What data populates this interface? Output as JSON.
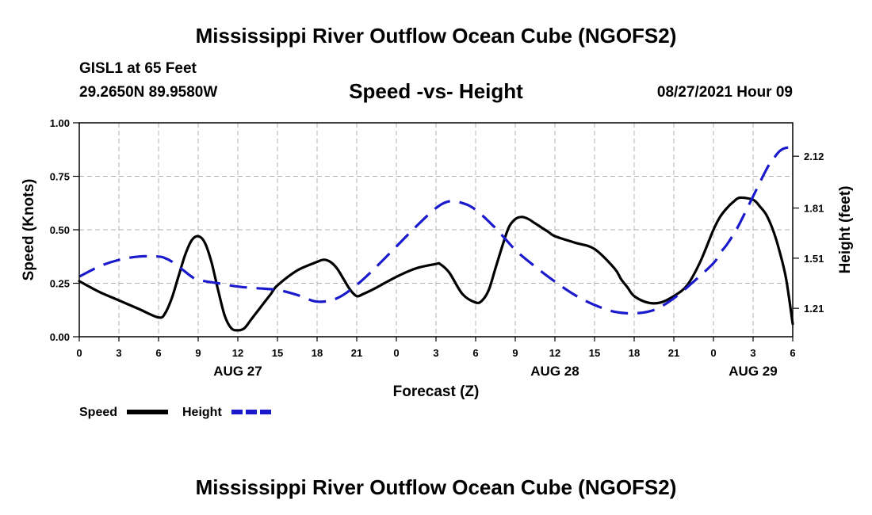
{
  "header": {
    "title": "Mississippi River Outflow Ocean Cube (NGOFS2)",
    "station": "GISL1 at 65 Feet",
    "coords": "29.2650N  89.9580W",
    "subtitle": "Speed -vs- Height",
    "datetime": "08/27/2021 Hour 09"
  },
  "footer": {
    "title": "Mississippi River Outflow Ocean Cube (NGOFS2)"
  },
  "colors": {
    "speed": "#000000",
    "height": "#1a1acc",
    "grid": "#b0b0b0"
  },
  "chart_data": {
    "type": "line",
    "title": "Speed -vs- Height",
    "xlabel": "Forecast (Z)",
    "ylabel": "Speed (Knots)",
    "y2label": "Height (feet)",
    "xlim": [
      0,
      54
    ],
    "ylim": [
      0,
      1.0
    ],
    "y2lim": [
      1.04,
      2.32
    ],
    "x_ticks": [
      0,
      3,
      6,
      9,
      12,
      15,
      18,
      21,
      24,
      27,
      30,
      33,
      36,
      39,
      42,
      45,
      48,
      51,
      54
    ],
    "x_tick_labels": [
      "0",
      "3",
      "6",
      "9",
      "12",
      "15",
      "18",
      "21",
      "0",
      "3",
      "6",
      "9",
      "12",
      "15",
      "18",
      "21",
      "0",
      "3",
      "6"
    ],
    "y_ticks": [
      0,
      0.25,
      0.5,
      0.75,
      1.0
    ],
    "y_tick_labels": [
      "0.00",
      "0.25",
      "0.50",
      "0.75",
      "1.00"
    ],
    "y2_ticks": [
      1.21,
      1.51,
      1.81,
      2.12
    ],
    "y2_tick_labels": [
      "1.21",
      "1.51",
      "1.81",
      "2.12"
    ],
    "date_labels": [
      {
        "x": 12,
        "label": "AUG 27"
      },
      {
        "x": 36,
        "label": "AUG 28"
      },
      {
        "x": 51,
        "label": "AUG 29"
      }
    ],
    "grid": true,
    "series": [
      {
        "name": "Speed",
        "axis": "left",
        "style": "solid",
        "x": [
          0,
          1.5,
          3,
          4.5,
          6,
          6.5,
          7,
          7.5,
          8,
          8.5,
          9,
          9.5,
          10,
          10.5,
          11,
          11.5,
          12,
          12.5,
          13,
          13.5,
          14,
          14.5,
          15,
          16.5,
          18,
          18.5,
          19,
          19.5,
          20,
          20.5,
          21,
          21.5,
          22.5,
          24,
          25.5,
          27,
          27.3,
          28,
          29,
          30,
          30.5,
          31,
          31.5,
          32,
          32.5,
          33,
          33.5,
          34,
          34.5,
          35,
          35.5,
          36,
          37.5,
          39,
          40.5,
          41,
          41.5,
          42,
          43,
          44,
          45,
          46,
          47,
          48,
          48.5,
          49,
          49.5,
          50,
          51,
          51.5,
          52,
          52.5,
          53,
          53.5,
          54
        ],
        "values": [
          0.26,
          0.21,
          0.17,
          0.13,
          0.09,
          0.11,
          0.18,
          0.28,
          0.38,
          0.45,
          0.47,
          0.44,
          0.35,
          0.22,
          0.1,
          0.04,
          0.03,
          0.04,
          0.08,
          0.12,
          0.16,
          0.2,
          0.24,
          0.31,
          0.35,
          0.36,
          0.35,
          0.32,
          0.27,
          0.22,
          0.19,
          0.2,
          0.23,
          0.28,
          0.32,
          0.34,
          0.34,
          0.3,
          0.2,
          0.16,
          0.17,
          0.22,
          0.32,
          0.42,
          0.51,
          0.55,
          0.56,
          0.55,
          0.53,
          0.51,
          0.49,
          0.47,
          0.44,
          0.41,
          0.32,
          0.27,
          0.23,
          0.19,
          0.16,
          0.16,
          0.19,
          0.24,
          0.35,
          0.5,
          0.56,
          0.6,
          0.63,
          0.65,
          0.64,
          0.61,
          0.57,
          0.5,
          0.4,
          0.27,
          0.06
        ]
      },
      {
        "name": "Height",
        "axis": "right",
        "style": "dashed",
        "x": [
          0,
          1.5,
          3,
          4.5,
          6,
          6.5,
          7,
          7.5,
          8,
          8.5,
          9,
          10.5,
          12,
          13.5,
          15,
          16.5,
          18,
          19.5,
          21,
          22.5,
          24,
          25.5,
          27,
          28,
          29,
          30,
          31.5,
          33,
          34.5,
          36,
          37.5,
          39,
          40.5,
          42,
          43.5,
          45,
          46.5,
          48,
          48.5,
          49,
          49.5,
          50,
          51,
          52,
          52.5,
          53,
          53.5,
          54
        ],
        "values": [
          1.4,
          1.46,
          1.5,
          1.52,
          1.52,
          1.51,
          1.49,
          1.46,
          1.43,
          1.4,
          1.38,
          1.36,
          1.34,
          1.33,
          1.32,
          1.29,
          1.25,
          1.27,
          1.35,
          1.46,
          1.58,
          1.7,
          1.81,
          1.85,
          1.84,
          1.8,
          1.69,
          1.56,
          1.46,
          1.37,
          1.29,
          1.23,
          1.19,
          1.18,
          1.2,
          1.27,
          1.37,
          1.48,
          1.54,
          1.59,
          1.65,
          1.72,
          1.88,
          2.04,
          2.1,
          2.15,
          2.17,
          2.17
        ]
      }
    ],
    "legend": [
      {
        "name": "Speed",
        "label": "Speed"
      },
      {
        "name": "Height",
        "label": "Height"
      }
    ]
  }
}
